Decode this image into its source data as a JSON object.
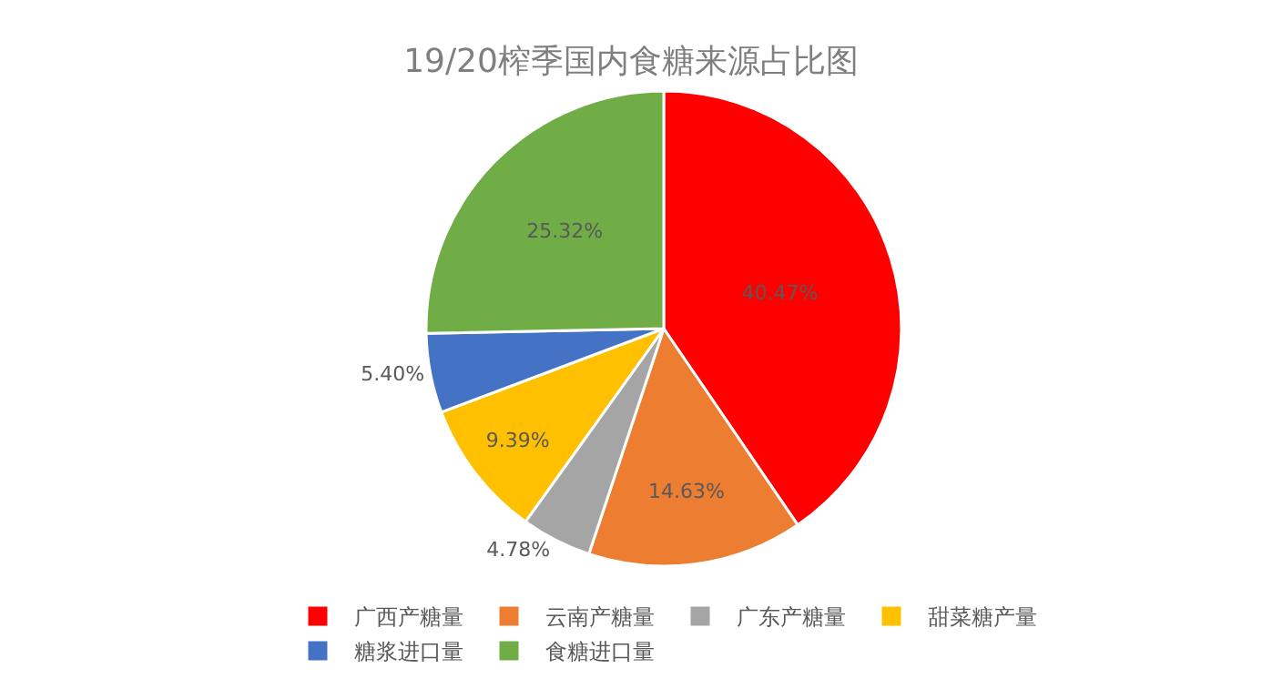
{
  "chart_data": {
    "type": "pie",
    "title": "19/20榨季国内食糖来源占比图",
    "categories": [
      "广西产糖量",
      "云南产糖量",
      "广东产糖量",
      "甜菜糖产量",
      "糖浆进口量",
      "食糖进口量"
    ],
    "values": [
      40.47,
      14.63,
      4.78,
      9.39,
      5.4,
      25.32
    ],
    "colors": [
      "#ff0000",
      "#ed7d31",
      "#a5a5a5",
      "#ffc000",
      "#4472c4",
      "#70ad47"
    ],
    "value_labels": [
      "40.47%",
      "14.63%",
      "4.78%",
      "9.39%",
      "5.40%",
      "25.32%"
    ],
    "legend": "bottom"
  }
}
